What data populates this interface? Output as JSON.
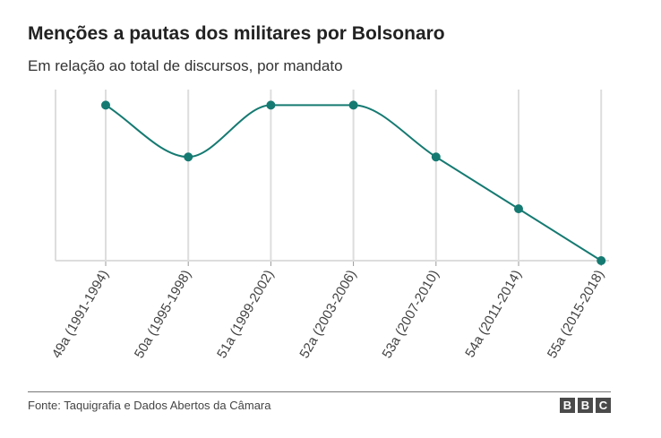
{
  "title": "Menções a pautas dos militares por Bolsonaro",
  "subtitle": "Em relação ao total de discursos, por mandato",
  "source": "Fonte: Taquigrafia e Dados Abertos da Câmara",
  "logo": [
    "B",
    "B",
    "C"
  ],
  "colors": {
    "line": "#157a72",
    "grid": "#dddddd",
    "axis": "#999999"
  },
  "chart_data": {
    "type": "line",
    "categories": [
      "49a (1991-1994)",
      "50a (1995-1998)",
      "51a (1999-2002)",
      "52a (2003-2006)",
      "53a (2007-2010)",
      "54a (2011-2014)",
      "55a (2015-2018)"
    ],
    "series": [
      {
        "values": [
          3,
          2,
          3,
          3,
          2,
          1,
          0
        ]
      }
    ],
    "ylim": [
      0,
      3.3
    ],
    "y_axis_labels_shown": false,
    "grid": "vertical",
    "smooth": true,
    "markers": true,
    "title": "Menções a pautas dos militares por Bolsonaro",
    "subtitle": "Em relação ao total de discursos, por mandato",
    "xlabel": "",
    "ylabel": ""
  }
}
